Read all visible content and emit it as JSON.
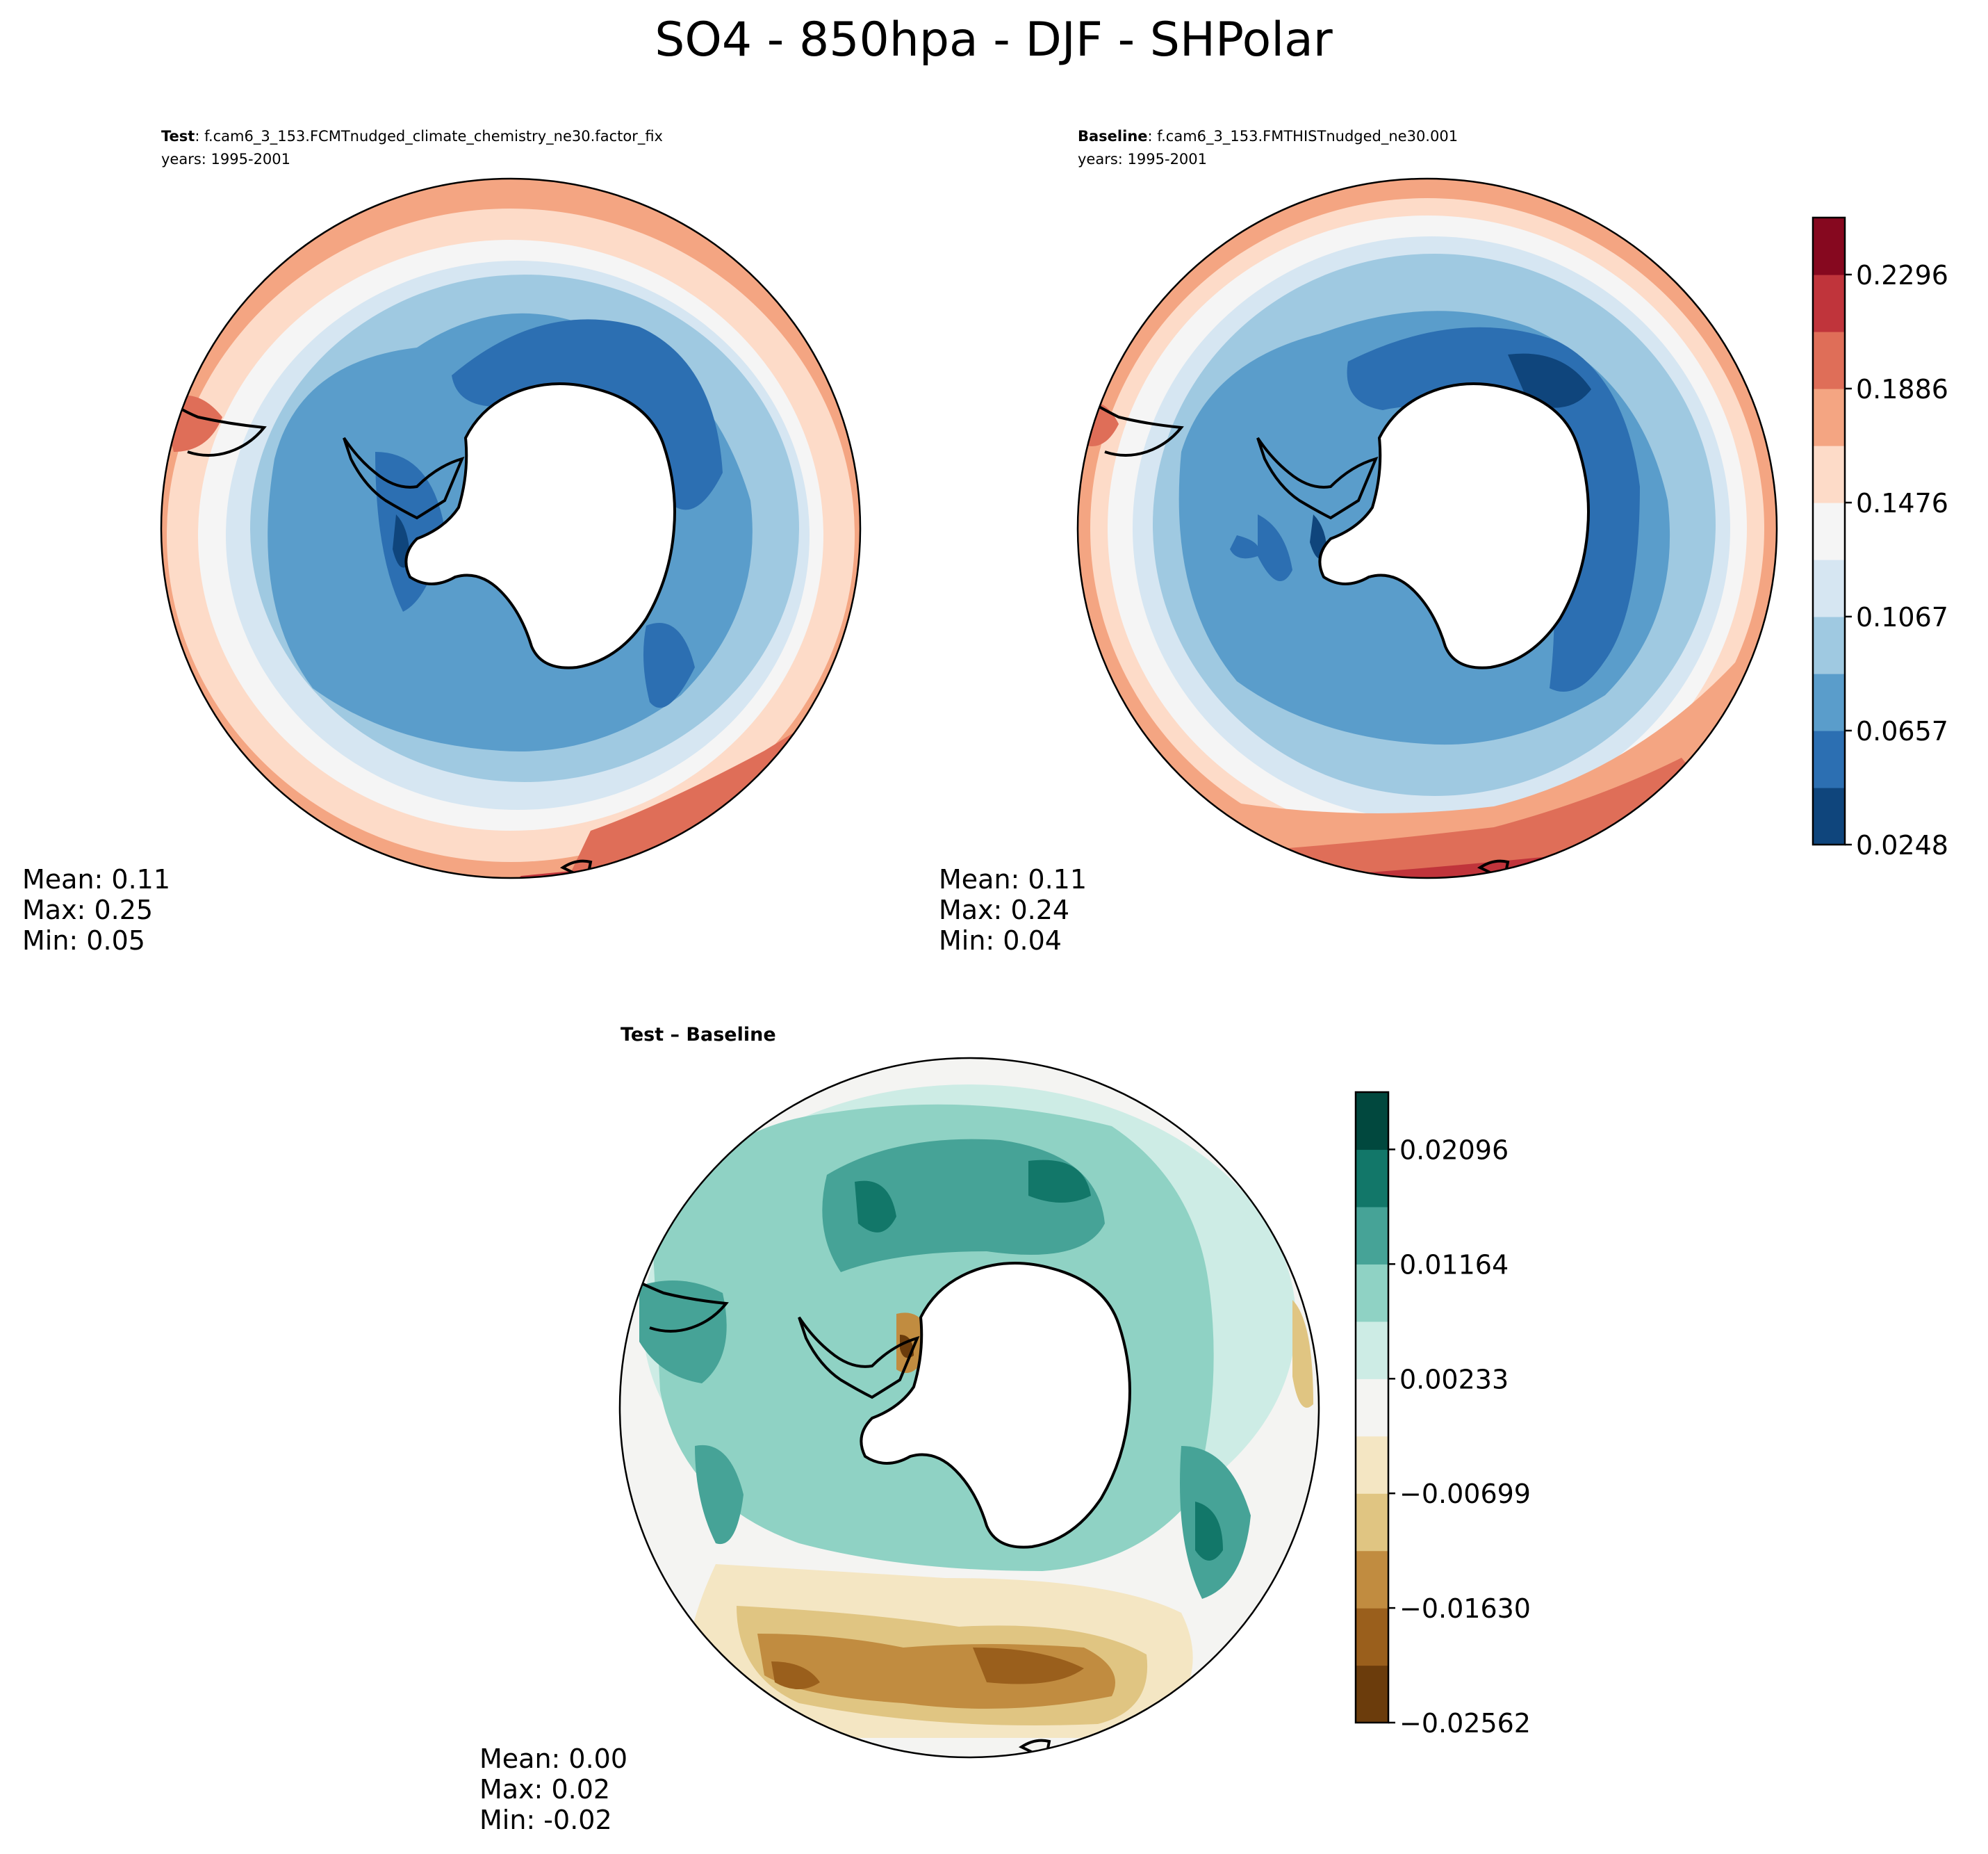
{
  "figure": {
    "title": "SO4 - 850hpa - DJF - SHPolar"
  },
  "panels": [
    {
      "key": "test",
      "label_bold": "Test",
      "label_rest": ": f.cam6_3_153.FCMTnudged_climate_chemistry_ne30.factor_fix",
      "years": "years: 1995-2001",
      "stats": {
        "mean": "Mean:  0.11",
        "max": "Max:  0.25",
        "min": "Min:  0.05"
      }
    },
    {
      "key": "baseline",
      "label_bold": "Baseline",
      "label_rest": ": f.cam6_3_153.FMTHISTnudged_ne30.001",
      "years": "years: 1995-2001",
      "stats": {
        "mean": "Mean:  0.11",
        "max": "Max:  0.24",
        "min": "Min:  0.04"
      }
    },
    {
      "key": "diff",
      "label_bold": "Test – Baseline",
      "stats": {
        "mean": "Mean:  0.00",
        "max": "Max:  0.02",
        "min": "Min: -0.02"
      }
    }
  ],
  "colorbars": {
    "main": {
      "colors": [
        "#0f457c",
        "#2c6fb2",
        "#5a9dcb",
        "#9fc9e1",
        "#d6e6f2",
        "#f5f5f5",
        "#fddbc8",
        "#f4a582",
        "#df6e58",
        "#c0343b",
        "#86081f"
      ],
      "ticks": [
        "0.0248",
        "0.0657",
        "0.1067",
        "0.1476",
        "0.1886",
        "0.2296"
      ]
    },
    "diff": {
      "colors": [
        "#6b3c0c",
        "#9a5f1c",
        "#c18c40",
        "#e0c582",
        "#f4e6c3",
        "#f4f4f2",
        "#cdece5",
        "#8fd2c4",
        "#46a397",
        "#127769",
        "#01483e"
      ],
      "ticks": [
        "−0.02562",
        "−0.01630",
        "−0.00699",
        "0.00233",
        "0.01164",
        "0.02096"
      ]
    }
  },
  "icons": {
    "antarctica": "antarctica-landmass",
    "coastline": "coastline-outline"
  }
}
